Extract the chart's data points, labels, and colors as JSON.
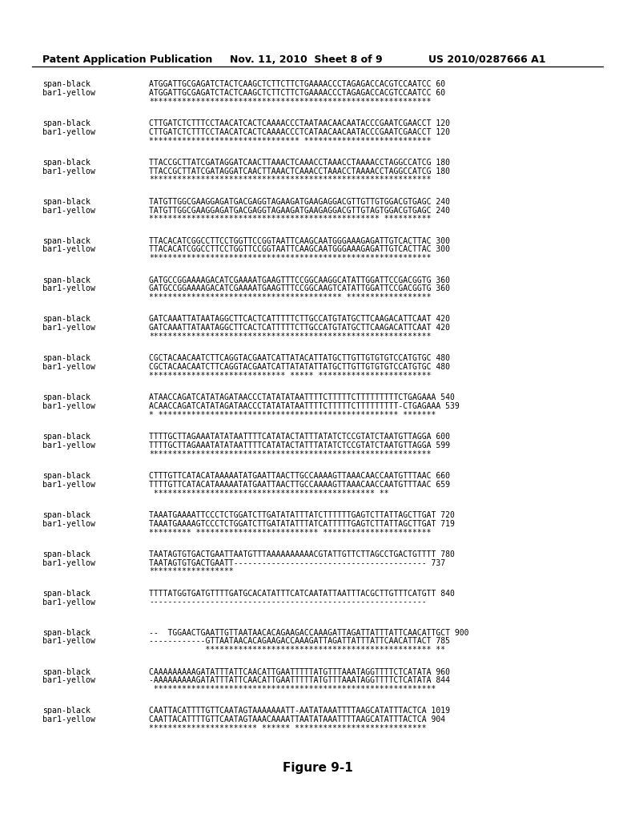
{
  "header_left": "Patent Application Publication",
  "header_mid": "Nov. 11, 2010  Sheet 8 of 9",
  "header_right": "US 2010/0287666 A1",
  "figure_label": "Figure 9-1",
  "background_color": "#ffffff",
  "text_color": "#000000",
  "rows": [
    {
      "label1": "span-black",
      "label2": "bar1-yellow",
      "seq1": "ATGGATTGCGAGATCTACTCAAGCTCTTCTTCTGAAAACCCTAGAGACCACGTCCAATCC 60",
      "seq2": "ATGGATTGCGAGATCTACTCAAGCTCTTCTTCTGAAAACCCTAGAGACCACGTCCAATCC 60",
      "match": "************************************************************"
    },
    {
      "label1": "span-black",
      "label2": "bar1-yellow",
      "seq1": "CTTGATCTCTTTCCTAACATCACTCAAAACCCTAATAACAACAATACCCGAATCGAACCT 120",
      "seq2": "CTTGATCTCTTTCCTAACATCACTCAAAACCCTCATAACAACAATACCCGAATCGAACCT 120",
      "match": "******************************** ***************************"
    },
    {
      "label1": "span-black",
      "label2": "bar1-yellow",
      "seq1": "TTACCGCTTATCGATAGGATCAACTTAAACTCAAACCTAAACCTAAAACCTAGGCCATCG 180",
      "seq2": "TTACCGCTTATCGATAGGATCAACTTAAACTCAAACCTAAACCTAAAACCTAGGCCATCG 180",
      "match": "************************************************************"
    },
    {
      "label1": "span-black",
      "label2": "bar1-yellow",
      "seq1": "TATGTTGGCGAAGGAGATGACGAGGTAGAAGATGAAGAGGACGTTGTTGTGGACGTGAGC 240",
      "seq2": "TATGTTGGCGAAGGAGATGACGAGGTAGAAGATGAAGAGGACGTTGTAGTGGACGTGAGC 240",
      "match": "************************************************* **********"
    },
    {
      "label1": "span-black",
      "label2": "bar1-yellow",
      "seq1": "TTACACATCGGCCTTCCTGGTTCCGGTAATTCAAGCAATGGGAAAGAGATTGTCACTTAC 300",
      "seq2": "TTACACATCGGCCTTCCTGGTTCCGGTAATTCAAGCAATGGGAAAGAGATTGTCACTTAC 300",
      "match": "************************************************************"
    },
    {
      "label1": "span-black",
      "label2": "bar1-yellow",
      "seq1": "GATGCCGGAAAAGACATCGAAAATGAAGTTTCCGGCAAGGCATATTGGATTCCGACGGTG 360",
      "seq2": "GATGCCGGAAAAGACATCGAAAATGAAGTTTCCGGCAAGTCATATTGGATTCCGACGGTG 360",
      "match": "***************************************** ******************"
    },
    {
      "label1": "span-black",
      "label2": "bar1-yellow",
      "seq1": "GATCAAATTATAATAGGCTTCACTCATTTTTCTTGCCATGTATGCTTCAAGACATTCAAT 420",
      "seq2": "GATCAAATTATAATAGGCTTCACTCATTTTTCTTGCCATGTATGCTTCAAGACATTCAAT 420",
      "match": "************************************************************"
    },
    {
      "label1": "span-black",
      "label2": "bar1-yellow",
      "seq1": "CGCTACAACAATCTTCAGGTACGAATCATTATACATTATGCTTGTTGTGTGTCCATGTGC 480",
      "seq2": "CGCTACAACAATCTTCAGGTACGAATCATTATATATTATGCTTGTTGTGTGTCCATGTGC 480",
      "match": "***************************** ***** ************************"
    },
    {
      "label1": "span-black",
      "label2": "bar1-yellow",
      "seq1": "ATAACCAGATCATATAGATAACCCTATATATAATTTTCTTTTTCTTTTTTTTTCTGAGAAA 540",
      "seq2": "ACAACCAGATCATATAGATAACCCTATATATAATTTTCTTTTTCTTTTTTTTT-CTGAGAAA 539",
      "match": "* *************************************************** *******"
    },
    {
      "label1": "span-black",
      "label2": "bar1-yellow",
      "seq1": "TTTTGCTTAGAAATATATAATTTTCATATACTATTTATATCTCCGTATCTAATGTTAGGA 600",
      "seq2": "TTTTGCTTAGAAATATATAATTTTCATATACTATTTATATCTCCGTATCTAATGTTAGGA 599",
      "match": "************************************************************"
    },
    {
      "label1": "span-black",
      "label2": "bar1-yellow",
      "seq1": "CTTTGTTCATACATAAAAATATGAATTAACTTGCCAAAAGTTAAACAACCAATGTTTAAC 660",
      "seq2": "TTTTGTTCATACATAAAAATATGAATTAACTTGCCAAAAGTTAAACAACCAATGTTTAAC 659",
      "match": " *********************************************** **"
    },
    {
      "label1": "span-black",
      "label2": "bar1-yellow",
      "seq1": "TAAATGAAAATTCCCTCTGGATCTTGATATATTTATCTTTTTTGAGTCTTATTAGCTTGAT 720",
      "seq2": "TAAATGAAAAGTCCCTCTGGATCTTGATATATTTATCATTTTTGAGTCTTATTAGCTTGAT 719",
      "match": "********* ************************** ***********************"
    },
    {
      "label1": "span-black",
      "label2": "bar1-yellow",
      "seq1": "TAATAGTGTGACTGAATTAATGTTTAAAAAAAAAACGTATTGTTCTTAGCCTGACTGTTTT 780",
      "seq2": "TAATAGTGTGACTGAATT----------------------------------------- 737",
      "match": "******************"
    },
    {
      "label1": "span-black",
      "label2": "bar1-yellow",
      "seq1": "TTTTATGGTGATGTTTTGATGCACATATTTCATCAATATTAATTTACGCTTGTTTCATGTT 840",
      "seq2": "-----------------------------------------------------------",
      "match": ""
    },
    {
      "label1": "span-black",
      "label2": "bar1-yellow",
      "seq1": "--  TGGAACTGAATTGTTAATAACACAGAAGACCAAAGATTAGATTATTTATTCAACATTGCT 900",
      "seq2": "------------GTTAATAACACAGAAGACCAAAGATTAGATTATTTATTCAACATTACT 785",
      "match": "            ************************************************ **"
    },
    {
      "label1": "span-black",
      "label2": "bar1-yellow",
      "seq1": "CAAAAAAAAAGATATTTATTCAACATTGAATTTTTATGTTTAAATAGGTTTTCTCATATA 960",
      "seq2": "-AAAAAAAAAGATATTTATTCAACATTGAATTTTTATGTTTAAATAGGTTTTCTCATATA 844",
      "match": " ************************************************************"
    },
    {
      "label1": "span-black",
      "label2": "bar1-yellow",
      "seq1": "CAATTACATTTTGTTCAATAGTAAAAAAATT-AATATAAATTTTAAGCATATTTACTCA 1019",
      "seq2": "CAATTACATTTTGTTCAATAGTAAACAAAATTAATATAAATTTTAAGCATATTTACTCA 904",
      "match": "*********************** ****** ****************************"
    }
  ]
}
